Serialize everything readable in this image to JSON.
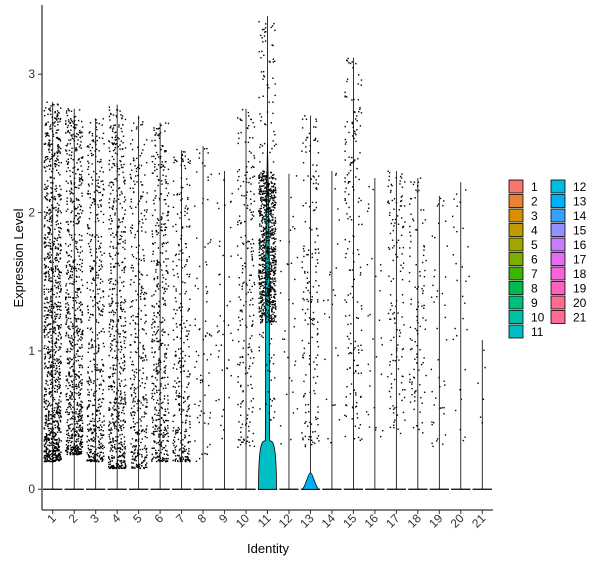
{
  "chart_data": {
    "type": "violin",
    "title": "",
    "xlabel": "Identity",
    "ylabel": "Expression Level",
    "ylim": [
      -0.15,
      3.5
    ],
    "yticks": [
      0,
      1,
      2,
      3
    ],
    "categories": [
      "1",
      "2",
      "3",
      "4",
      "5",
      "6",
      "7",
      "8",
      "9",
      "10",
      "11",
      "12",
      "13",
      "14",
      "15",
      "16",
      "17",
      "18",
      "19",
      "20",
      "21"
    ],
    "colors": [
      "#F8766D",
      "#EA8331",
      "#D89000",
      "#C09B00",
      "#A3A500",
      "#7CAE00",
      "#39B600",
      "#00BB4E",
      "#00BF7D",
      "#00C1A3",
      "#00BFC4",
      "#00BAE0",
      "#00B0F6",
      "#35A2FF",
      "#9590FF",
      "#C77CFF",
      "#E76BF3",
      "#FA62DB",
      "#FF62BC",
      "#FF6C91",
      "#FF6C91"
    ],
    "max_values": [
      2.8,
      2.75,
      2.68,
      2.78,
      2.7,
      2.65,
      2.45,
      2.48,
      2.3,
      2.75,
      3.42,
      2.28,
      2.7,
      2.3,
      3.12,
      2.25,
      2.3,
      2.25,
      2.12,
      2.22,
      1.08
    ],
    "nonzero_counts": [
      1100,
      800,
      500,
      650,
      380,
      480,
      320,
      80,
      45,
      220,
      900,
      35,
      180,
      25,
      180,
      30,
      140,
      110,
      45,
      30,
      6
    ],
    "value_ranges": [
      [
        0.2,
        2.8
      ],
      [
        0.25,
        2.75
      ],
      [
        0.2,
        2.68
      ],
      [
        0.15,
        2.78
      ],
      [
        0.15,
        2.7
      ],
      [
        0.2,
        2.65
      ],
      [
        0.2,
        2.45
      ],
      [
        0.2,
        2.48
      ],
      [
        0.2,
        2.3
      ],
      [
        0.3,
        2.75
      ],
      [
        0.5,
        3.42
      ],
      [
        0.3,
        2.28
      ],
      [
        0.3,
        2.7
      ],
      [
        0.3,
        2.3
      ],
      [
        0.3,
        3.12
      ],
      [
        0.3,
        2.25
      ],
      [
        0.4,
        2.3
      ],
      [
        0.4,
        2.25
      ],
      [
        0.3,
        2.12
      ],
      [
        0.3,
        2.22
      ],
      [
        0.3,
        1.08
      ]
    ],
    "violins": [
      {
        "category": "11",
        "shape": "wide-base-tall-spike",
        "max": 2.5
      },
      {
        "category": "13",
        "shape": "small-base",
        "max": 0.12
      }
    ],
    "legend": {
      "position": "right",
      "items": [
        "1",
        "2",
        "3",
        "4",
        "5",
        "6",
        "7",
        "8",
        "9",
        "10",
        "11",
        "12",
        "13",
        "14",
        "15",
        "16",
        "17",
        "18",
        "19",
        "20",
        "21"
      ]
    },
    "grid": false
  }
}
